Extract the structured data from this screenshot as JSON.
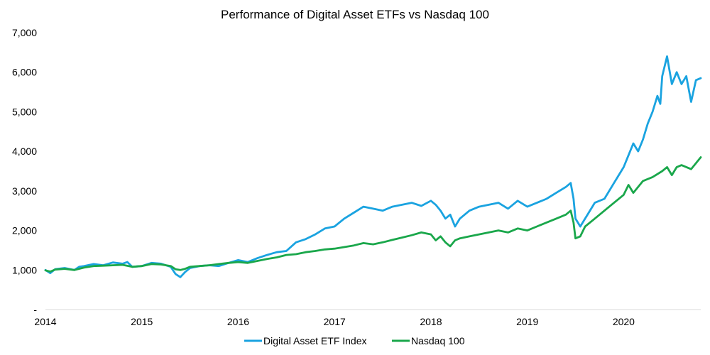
{
  "chart_data": {
    "type": "line",
    "title": "Performance of Digital Asset ETFs vs Nasdaq 100",
    "xlabel": "",
    "ylabel": "",
    "ylim": [
      0,
      7000
    ],
    "xlim": [
      2014,
      2020.8
    ],
    "y_ticks": [
      {
        "value": 0,
        "label": "-"
      },
      {
        "value": 1000,
        "label": "1,000"
      },
      {
        "value": 2000,
        "label": "2,000"
      },
      {
        "value": 3000,
        "label": "3,000"
      },
      {
        "value": 4000,
        "label": "4,000"
      },
      {
        "value": 5000,
        "label": "5,000"
      },
      {
        "value": 6000,
        "label": "6,000"
      },
      {
        "value": 7000,
        "label": "7,000"
      }
    ],
    "x_ticks": [
      {
        "value": 2014,
        "label": "2014"
      },
      {
        "value": 2015,
        "label": "2015"
      },
      {
        "value": 2016,
        "label": "2016"
      },
      {
        "value": 2017,
        "label": "2017"
      },
      {
        "value": 2018,
        "label": "2018"
      },
      {
        "value": 2019,
        "label": "2019"
      },
      {
        "value": 2020,
        "label": "2020"
      }
    ],
    "grid": false,
    "legend_position": "bottom",
    "series": [
      {
        "name": "Digital Asset ETF Index",
        "color": "#1AA3E0",
        "x": [
          2014.0,
          2014.05,
          2014.1,
          2014.2,
          2014.3,
          2014.35,
          2014.4,
          2014.5,
          2014.6,
          2014.7,
          2014.8,
          2014.85,
          2014.9,
          2015.0,
          2015.1,
          2015.2,
          2015.3,
          2015.35,
          2015.4,
          2015.45,
          2015.5,
          2015.6,
          2015.7,
          2015.8,
          2015.9,
          2016.0,
          2016.1,
          2016.2,
          2016.3,
          2016.4,
          2016.5,
          2016.6,
          2016.7,
          2016.8,
          2016.9,
          2017.0,
          2017.1,
          2017.2,
          2017.3,
          2017.4,
          2017.5,
          2017.6,
          2017.7,
          2017.8,
          2017.9,
          2018.0,
          2018.05,
          2018.1,
          2018.15,
          2018.2,
          2018.25,
          2018.3,
          2018.4,
          2018.5,
          2018.6,
          2018.7,
          2018.8,
          2018.9,
          2019.0,
          2019.1,
          2019.2,
          2019.3,
          2019.4,
          2019.45,
          2019.48,
          2019.5,
          2019.55,
          2019.6,
          2019.7,
          2019.8,
          2019.9,
          2020.0,
          2020.05,
          2020.1,
          2020.15,
          2020.2,
          2020.25,
          2020.3,
          2020.35,
          2020.38,
          2020.4,
          2020.45,
          2020.5,
          2020.55,
          2020.6,
          2020.65,
          2020.7,
          2020.75,
          2020.8
        ],
        "values": [
          1000,
          920,
          1020,
          1050,
          1000,
          1080,
          1100,
          1150,
          1120,
          1190,
          1160,
          1200,
          1080,
          1100,
          1180,
          1160,
          1080,
          900,
          820,
          950,
          1050,
          1100,
          1120,
          1100,
          1180,
          1250,
          1200,
          1300,
          1380,
          1450,
          1480,
          1700,
          1780,
          1900,
          2050,
          2100,
          2300,
          2450,
          2600,
          2550,
          2500,
          2600,
          2650,
          2700,
          2620,
          2750,
          2650,
          2500,
          2300,
          2400,
          2100,
          2300,
          2500,
          2600,
          2650,
          2700,
          2550,
          2750,
          2600,
          2700,
          2800,
          2950,
          3100,
          3200,
          2800,
          2300,
          2100,
          2300,
          2700,
          2800,
          3200,
          3600,
          3900,
          4200,
          4000,
          4300,
          4700,
          5000,
          5400,
          5200,
          5900,
          6400,
          5700,
          6000,
          5700,
          5900,
          5250,
          5800,
          5850
        ]
      },
      {
        "name": "Nasdaq 100",
        "color": "#1AA74B",
        "x": [
          2014.0,
          2014.05,
          2014.1,
          2014.2,
          2014.3,
          2014.4,
          2014.5,
          2014.6,
          2014.7,
          2014.8,
          2014.9,
          2015.0,
          2015.1,
          2015.2,
          2015.3,
          2015.35,
          2015.4,
          2015.45,
          2015.5,
          2015.6,
          2015.7,
          2015.8,
          2015.9,
          2016.0,
          2016.1,
          2016.2,
          2016.3,
          2016.4,
          2016.5,
          2016.6,
          2016.7,
          2016.8,
          2016.9,
          2017.0,
          2017.1,
          2017.2,
          2017.3,
          2017.4,
          2017.5,
          2017.6,
          2017.7,
          2017.8,
          2017.9,
          2018.0,
          2018.05,
          2018.1,
          2018.15,
          2018.2,
          2018.25,
          2018.3,
          2018.4,
          2018.5,
          2018.6,
          2018.7,
          2018.8,
          2018.9,
          2019.0,
          2019.1,
          2019.2,
          2019.3,
          2019.4,
          2019.45,
          2019.48,
          2019.5,
          2019.55,
          2019.6,
          2019.7,
          2019.8,
          2019.9,
          2020.0,
          2020.05,
          2020.1,
          2020.15,
          2020.2,
          2020.3,
          2020.4,
          2020.45,
          2020.5,
          2020.55,
          2020.6,
          2020.7,
          2020.75,
          2020.8
        ],
        "values": [
          990,
          960,
          1010,
          1030,
          1000,
          1060,
          1100,
          1110,
          1120,
          1130,
          1080,
          1100,
          1150,
          1140,
          1100,
          1020,
          1000,
          1030,
          1080,
          1100,
          1120,
          1150,
          1180,
          1200,
          1180,
          1230,
          1280,
          1320,
          1380,
          1400,
          1450,
          1480,
          1520,
          1540,
          1580,
          1620,
          1680,
          1650,
          1700,
          1760,
          1820,
          1880,
          1950,
          1900,
          1750,
          1850,
          1700,
          1600,
          1750,
          1800,
          1850,
          1900,
          1950,
          2000,
          1950,
          2050,
          2000,
          2100,
          2200,
          2300,
          2400,
          2500,
          2200,
          1800,
          1850,
          2100,
          2300,
          2500,
          2700,
          2900,
          3150,
          2950,
          3100,
          3250,
          3350,
          3500,
          3600,
          3400,
          3600,
          3650,
          3550,
          3700,
          3850
        ]
      }
    ]
  }
}
